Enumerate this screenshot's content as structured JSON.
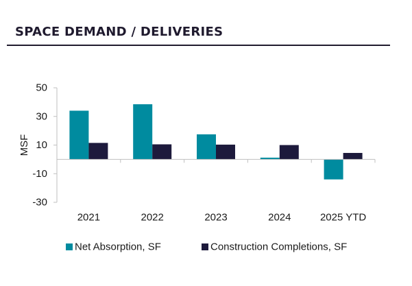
{
  "title": "SPACE DEMAND / DELIVERIES",
  "chart_data": {
    "type": "bar",
    "title": "SPACE DEMAND / DELIVERIES",
    "xlabel": "",
    "ylabel": "MSF",
    "categories": [
      "2021",
      "2022",
      "2023",
      "2024",
      "2025 YTD"
    ],
    "series": [
      {
        "name": "Net Absorption, SF",
        "color": "#008b9f",
        "values": [
          34,
          38.5,
          17.5,
          1.2,
          -14
        ]
      },
      {
        "name": "Construction Completions, SF",
        "color": "#1d1a3c",
        "values": [
          11.5,
          10.5,
          10.3,
          10,
          4.5
        ]
      }
    ],
    "ylim": [
      -30,
      50
    ],
    "yticks": [
      50,
      30,
      10,
      -10,
      -30
    ],
    "ytick_labels": [
      "50",
      "30",
      "10",
      "-10",
      "-30"
    ],
    "grid": false,
    "legend_position": "bottom"
  }
}
